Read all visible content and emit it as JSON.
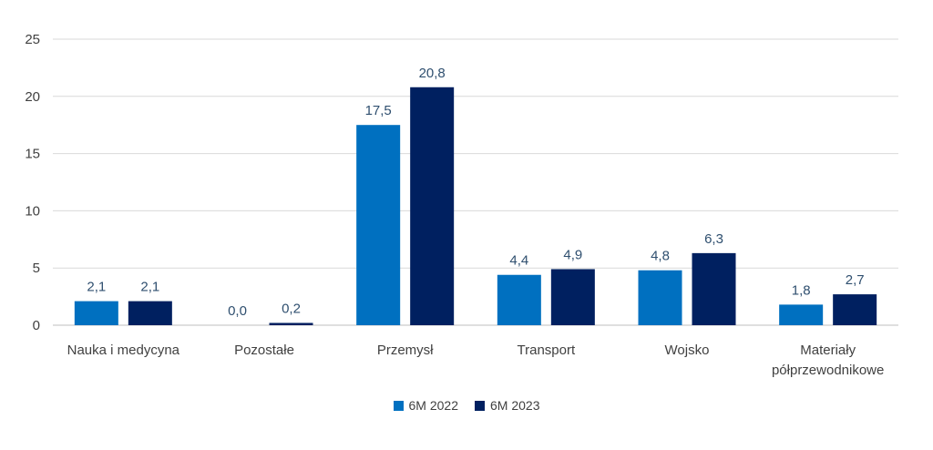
{
  "chart_data": {
    "type": "bar",
    "categories": [
      [
        "Nauka i medycyna"
      ],
      [
        "Pozostałe"
      ],
      [
        "Przemysł"
      ],
      [
        "Transport"
      ],
      [
        "Wojsko"
      ],
      [
        "Materiały",
        "półprzewodnikowe"
      ]
    ],
    "series": [
      {
        "name": "6M 2022",
        "color": "#0070c0",
        "values": [
          2.1,
          0.0,
          17.5,
          4.4,
          4.8,
          1.8
        ],
        "labels": [
          "2,1",
          "0,0",
          "17,5",
          "4,4",
          "4,8",
          "1,8"
        ]
      },
      {
        "name": "6M 2023",
        "color": "#002060",
        "values": [
          2.1,
          0.2,
          20.8,
          4.9,
          6.3,
          2.7
        ],
        "labels": [
          "2,1",
          "0,2",
          "20,8",
          "4,9",
          "6,3",
          "2,7"
        ]
      }
    ],
    "ylim": [
      0,
      25
    ],
    "yticks": [
      0,
      5,
      10,
      15,
      20,
      25
    ],
    "grid": true,
    "legend_position": "bottom"
  }
}
